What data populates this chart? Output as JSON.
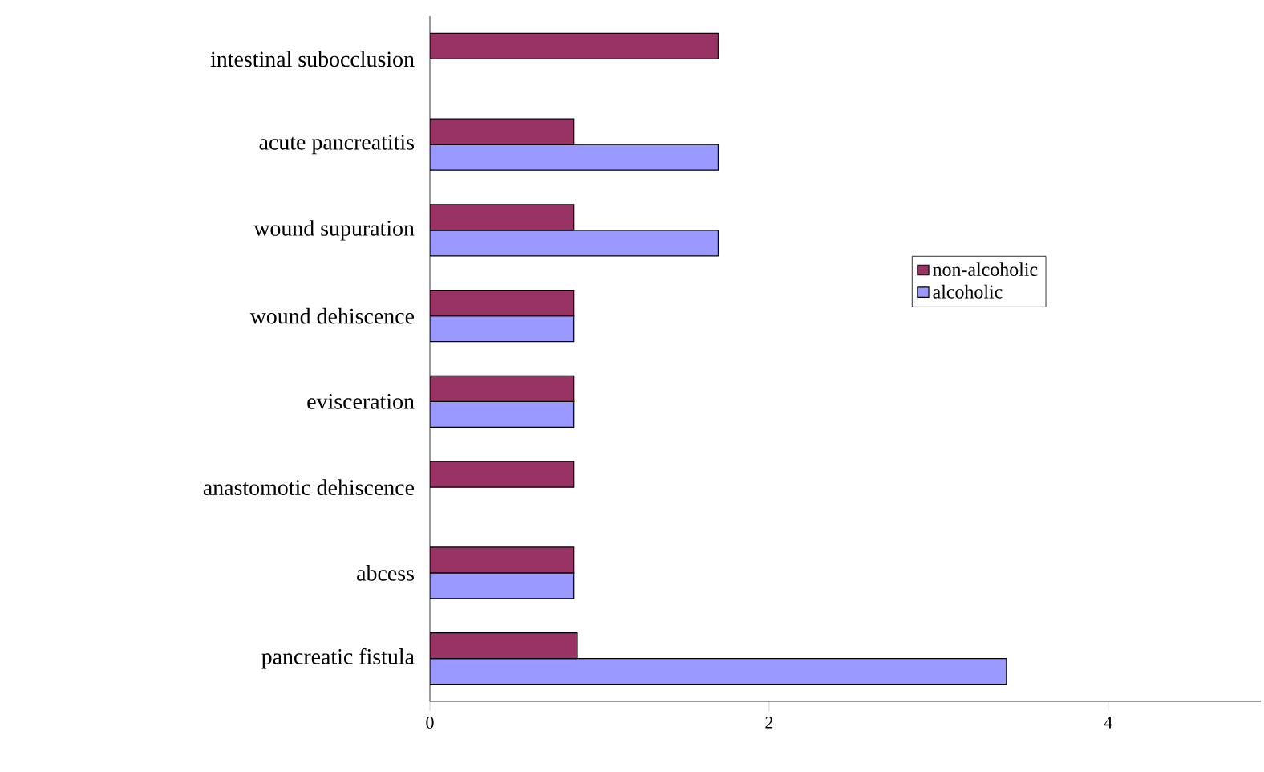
{
  "chart_data": {
    "type": "bar",
    "orientation": "horizontal",
    "categories": [
      "intestinal subocclusion",
      "acute pancreatitis",
      "wound supuration",
      "wound dehiscence",
      "evisceration",
      "anastomotic dehiscence",
      "abcess",
      "pancreatic fistula"
    ],
    "series": [
      {
        "name": "non-alcoholic",
        "color": "#993366",
        "values": [
          1.7,
          0.85,
          0.85,
          0.85,
          0.85,
          0.85,
          0.85,
          0.87
        ]
      },
      {
        "name": "alcoholic",
        "color": "#9999ff",
        "values": [
          null,
          1.7,
          1.7,
          0.85,
          0.85,
          null,
          0.85,
          3.4
        ]
      }
    ],
    "xlim": [
      0,
      4.9
    ],
    "xticks": [
      0,
      2,
      4
    ],
    "legend": "right"
  }
}
